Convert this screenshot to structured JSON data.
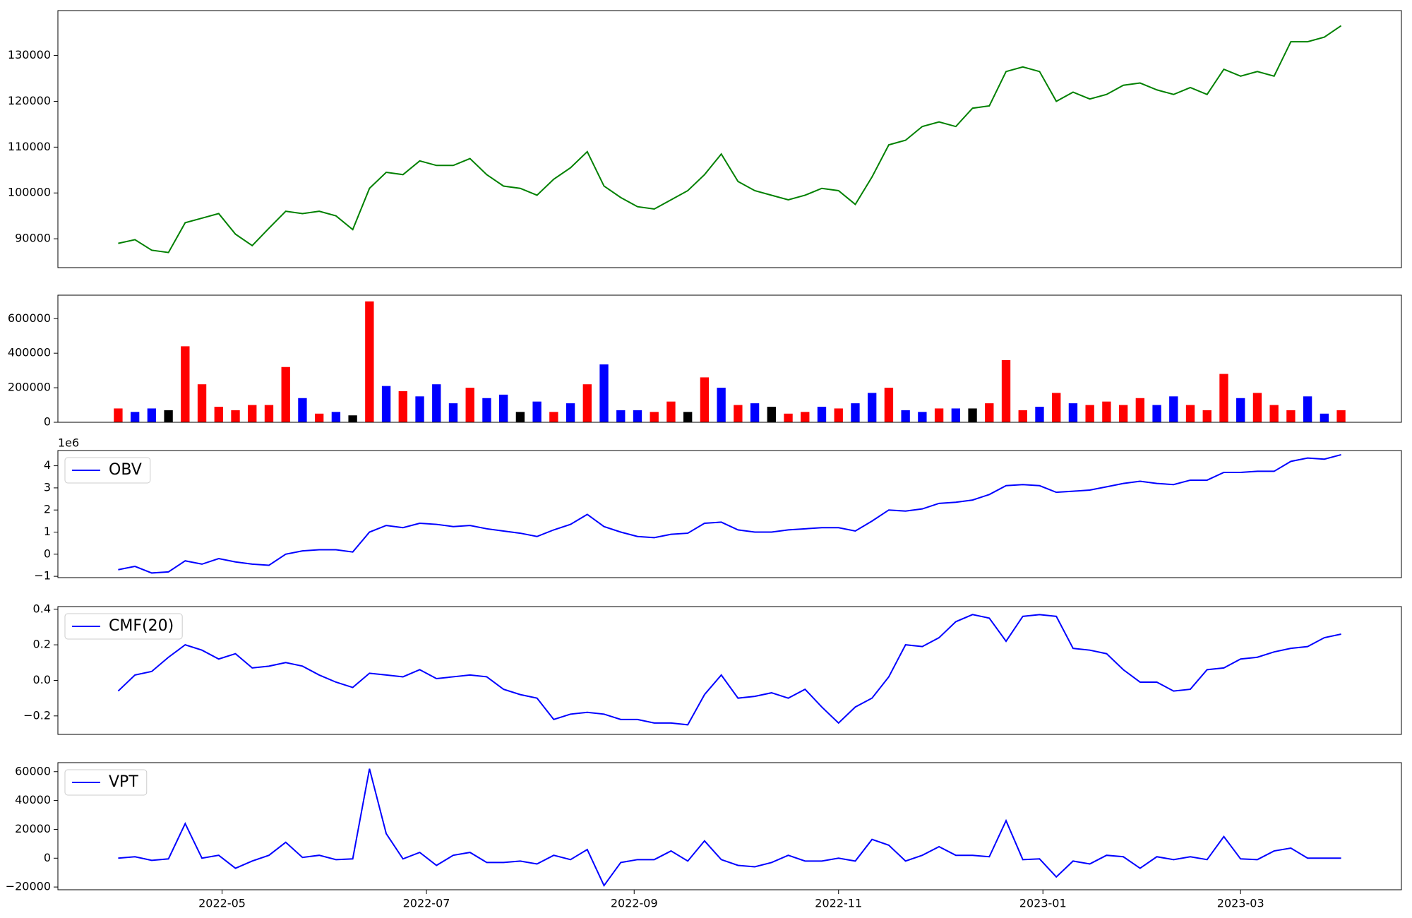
{
  "chart_data": [
    {
      "type": "line",
      "color": "green",
      "values": [
        89000,
        89800,
        87500,
        87000,
        93500,
        94500,
        95500,
        91000,
        88500,
        92300,
        96000,
        95500,
        96000,
        95000,
        92000,
        101000,
        104500,
        104000,
        107000,
        106000,
        106000,
        107500,
        104000,
        101500,
        101000,
        99500,
        103000,
        105500,
        109000,
        101500,
        99000,
        97000,
        96500,
        98500,
        100500,
        104000,
        108500,
        102500,
        100500,
        99500,
        98500,
        99500,
        101000,
        100500,
        97500,
        103500,
        110500,
        111500,
        114500,
        115500,
        114500,
        118500,
        119000,
        126500,
        127500,
        126500,
        120000,
        122000,
        120500,
        121500,
        123500,
        124000,
        122500,
        121500,
        123000,
        121500,
        127000,
        125500,
        126500,
        125500,
        133000,
        133000,
        134000,
        136500
      ],
      "ylim": [
        83700,
        139800
      ],
      "yticks": [
        90000,
        100000,
        110000,
        120000,
        130000
      ]
    },
    {
      "type": "bar",
      "values": [
        80000,
        60000,
        80000,
        70000,
        440000,
        220000,
        90000,
        70000,
        100000,
        100000,
        320000,
        140000,
        50000,
        60000,
        40000,
        700000,
        210000,
        180000,
        150000,
        220000,
        110000,
        200000,
        140000,
        160000,
        60000,
        120000,
        60000,
        110000,
        220000,
        335000,
        70000,
        70000,
        60000,
        120000,
        60000,
        260000,
        200000,
        100000,
        110000,
        90000,
        50000,
        60000,
        90000,
        80000,
        110000,
        170000,
        200000,
        70000,
        60000,
        80000,
        80000,
        80000,
        110000,
        360000,
        70000,
        90000,
        170000,
        110000,
        100000,
        120000,
        100000,
        140000,
        100000,
        150000,
        100000,
        70000,
        280000,
        140000,
        170000,
        100000,
        70000,
        150000,
        50000,
        70000
      ],
      "colors": [
        "red",
        "blue",
        "blue",
        "black",
        "red",
        "red",
        "red",
        "red",
        "red",
        "red",
        "red",
        "blue",
        "red",
        "blue",
        "black",
        "red",
        "blue",
        "red",
        "blue",
        "blue",
        "blue",
        "red",
        "blue",
        "blue",
        "black",
        "blue",
        "red",
        "blue",
        "red",
        "blue",
        "blue",
        "blue",
        "red",
        "red",
        "black",
        "red",
        "blue",
        "red",
        "blue",
        "black",
        "red",
        "red",
        "blue",
        "red",
        "blue",
        "blue",
        "red",
        "blue",
        "blue",
        "red",
        "blue",
        "black",
        "red",
        "red",
        "red",
        "blue",
        "red",
        "blue",
        "red",
        "red",
        "red",
        "red",
        "blue",
        "blue",
        "red",
        "red",
        "red",
        "blue",
        "red",
        "red",
        "red",
        "blue",
        "blue",
        "red"
      ],
      "ylim": [
        0,
        736000
      ],
      "yticks": [
        0,
        200000,
        400000,
        600000
      ]
    },
    {
      "type": "line",
      "offset_text": "1e6",
      "legend": "upper left",
      "series": [
        {
          "name": "OBV",
          "color": "blue",
          "values": [
            -0.7,
            -0.55,
            -0.85,
            -0.8,
            -0.3,
            -0.45,
            -0.2,
            -0.35,
            -0.45,
            -0.5,
            0.0,
            0.15,
            0.2,
            0.2,
            0.1,
            1.0,
            1.3,
            1.2,
            1.4,
            1.35,
            1.25,
            1.3,
            1.15,
            1.05,
            0.95,
            0.8,
            1.1,
            1.35,
            1.8,
            1.25,
            1.0,
            0.8,
            0.75,
            0.9,
            0.95,
            1.4,
            1.45,
            1.1,
            1.0,
            1.0,
            1.1,
            1.15,
            1.2,
            1.2,
            1.05,
            1.5,
            2.0,
            1.95,
            2.05,
            2.3,
            2.35,
            2.45,
            2.7,
            3.1,
            3.15,
            3.1,
            2.8,
            2.85,
            2.9,
            3.05,
            3.2,
            3.3,
            3.2,
            3.15,
            3.35,
            3.35,
            3.7,
            3.7,
            3.75,
            3.75,
            4.2,
            4.35,
            4.3,
            4.5
          ]
        }
      ],
      "ylim": [
        -1.06,
        4.69
      ],
      "yticks": [
        {
          "value": -1,
          "label": "−1"
        },
        0,
        1,
        2,
        3,
        4
      ]
    },
    {
      "type": "line",
      "legend": "upper left",
      "series": [
        {
          "name": "CMF(20)",
          "color": "blue",
          "values": [
            -0.06,
            0.03,
            0.05,
            0.13,
            0.2,
            0.17,
            0.12,
            0.15,
            0.07,
            0.08,
            0.1,
            0.08,
            0.03,
            -0.01,
            -0.04,
            0.04,
            0.03,
            0.02,
            0.06,
            0.01,
            0.02,
            0.03,
            0.02,
            -0.05,
            -0.08,
            -0.1,
            -0.22,
            -0.19,
            -0.18,
            -0.19,
            -0.22,
            -0.22,
            -0.24,
            -0.24,
            -0.25,
            -0.08,
            0.03,
            -0.1,
            -0.09,
            -0.07,
            -0.1,
            -0.05,
            -0.15,
            -0.24,
            -0.15,
            -0.1,
            0.02,
            0.2,
            0.19,
            0.24,
            0.33,
            0.37,
            0.35,
            0.22,
            0.36,
            0.37,
            0.36,
            0.18,
            0.17,
            0.15,
            0.06,
            -0.01,
            -0.01,
            -0.06,
            -0.05,
            0.06,
            0.07,
            0.12,
            0.13,
            0.16,
            0.18,
            0.19,
            0.24,
            0.26
          ]
        }
      ],
      "ylim": [
        -0.304,
        0.415
      ],
      "yticks": [
        {
          "value": -0.2,
          "label": "−0.2"
        },
        {
          "value": 0,
          "label": "0.0"
        },
        0.2,
        0.4
      ]
    },
    {
      "type": "line",
      "legend": "upper left",
      "series": [
        {
          "name": "VPT",
          "color": "blue",
          "values": [
            0,
            1000,
            -1500,
            -500,
            24000,
            0,
            2000,
            -7000,
            -2000,
            2000,
            11000,
            500,
            2000,
            -1000,
            -500,
            62000,
            17000,
            -500,
            4000,
            -5000,
            2000,
            4000,
            -3000,
            -3000,
            -2000,
            -4000,
            2000,
            -1000,
            6000,
            -19000,
            -3000,
            -1000,
            -1000,
            5000,
            -2000,
            12000,
            -1000,
            -5000,
            -6000,
            -3000,
            2000,
            -2000,
            -2000,
            0,
            -2000,
            13000,
            9000,
            -2000,
            2000,
            8000,
            2000,
            2000,
            1000,
            26000,
            -1000,
            -500,
            -13000,
            -2000,
            -4000,
            2000,
            1000,
            -7000,
            1000,
            -1000,
            1000,
            -1000,
            15000,
            -500,
            -1000,
            5000,
            7000,
            0,
            0,
            0
          ]
        }
      ],
      "ylim": [
        -21900,
        66250
      ],
      "yticks": [
        {
          "value": -20000,
          "label": "−20000"
        },
        0,
        20000,
        40000,
        60000
      ],
      "x": [
        "2022-03-31",
        "2022-04-05",
        "2022-04-10",
        "2022-04-15",
        "2022-04-20",
        "2022-04-25",
        "2022-04-30",
        "2022-05-05",
        "2022-05-10",
        "2022-05-15",
        "2022-05-20",
        "2022-05-25",
        "2022-05-30",
        "2022-06-04",
        "2022-06-09",
        "2022-06-14",
        "2022-06-19",
        "2022-06-24",
        "2022-06-29",
        "2022-07-04",
        "2022-07-09",
        "2022-07-14",
        "2022-07-19",
        "2022-07-24",
        "2022-07-29",
        "2022-08-03",
        "2022-08-08",
        "2022-08-13",
        "2022-08-18",
        "2022-08-23",
        "2022-08-28",
        "2022-09-02",
        "2022-09-07",
        "2022-09-12",
        "2022-09-17",
        "2022-09-22",
        "2022-09-27",
        "2022-10-02",
        "2022-10-07",
        "2022-10-12",
        "2022-10-17",
        "2022-10-22",
        "2022-10-27",
        "2022-11-01",
        "2022-11-06",
        "2022-11-11",
        "2022-11-16",
        "2022-11-21",
        "2022-11-26",
        "2022-12-01",
        "2022-12-06",
        "2022-12-11",
        "2022-12-16",
        "2022-12-21",
        "2022-12-26",
        "2022-12-31",
        "2023-01-05",
        "2023-01-10",
        "2023-01-15",
        "2023-01-20",
        "2023-01-25",
        "2023-01-30",
        "2023-02-04",
        "2023-02-09",
        "2023-02-14",
        "2023-02-19",
        "2023-02-24",
        "2023-03-01",
        "2023-03-06",
        "2023-03-11",
        "2023-03-16",
        "2023-03-21",
        "2023-03-26",
        "2023-03-31"
      ],
      "xlim": [
        "2022-03-13",
        "2023-04-18"
      ],
      "xticks": [
        {
          "value": "2022-05-01",
          "label": "2022-05"
        },
        {
          "value": "2022-07-01",
          "label": "2022-07"
        },
        {
          "value": "2022-09-01",
          "label": "2022-09"
        },
        {
          "value": "2022-11-01",
          "label": "2022-11"
        },
        {
          "value": "2023-01-01",
          "label": "2023-01"
        },
        {
          "value": "2023-03-01",
          "label": "2023-03"
        }
      ]
    }
  ]
}
